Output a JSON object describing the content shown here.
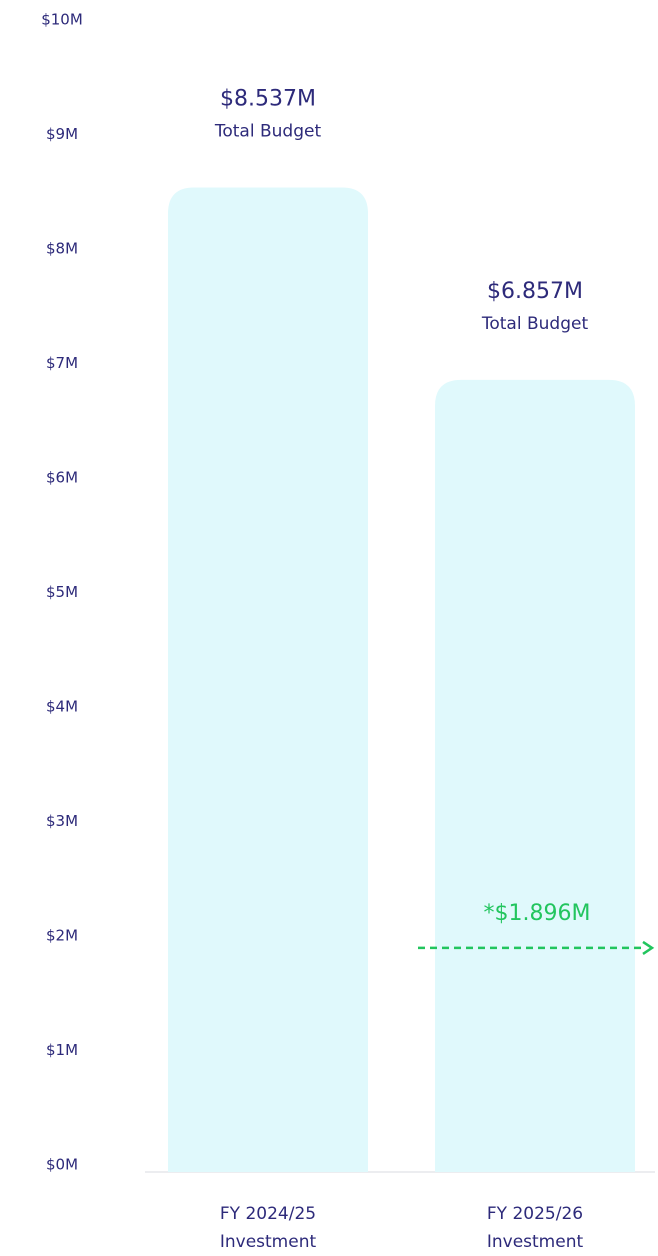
{
  "chart_data": {
    "type": "bar",
    "categories": [
      "FY 2024/25 Investment",
      "FY 2025/26 Investment"
    ],
    "values": [
      8.537,
      6.857
    ],
    "value_labels": [
      "$8.537M",
      "$6.857M"
    ],
    "value_sublabels": [
      "Total Budget",
      "Total Budget"
    ],
    "color": "#e0f9fc",
    "ylim": [
      0,
      10
    ],
    "yticks": [
      {
        "value": 0,
        "label": "$0M"
      },
      {
        "value": 1,
        "label": "$1M"
      },
      {
        "value": 2,
        "label": "$2M"
      },
      {
        "value": 3,
        "label": "$3M"
      },
      {
        "value": 4,
        "label": "$4M"
      },
      {
        "value": 5,
        "label": "$5M"
      },
      {
        "value": 6,
        "label": "$6M"
      },
      {
        "value": 7,
        "label": "$7M"
      },
      {
        "value": 8,
        "label": "$8M"
      },
      {
        "value": 9,
        "label": "$9M"
      },
      {
        "value": 10,
        "label": "$10M"
      }
    ],
    "annotation": {
      "text": "*$1.896M",
      "value": 1.896,
      "color": "#22c55e"
    }
  }
}
